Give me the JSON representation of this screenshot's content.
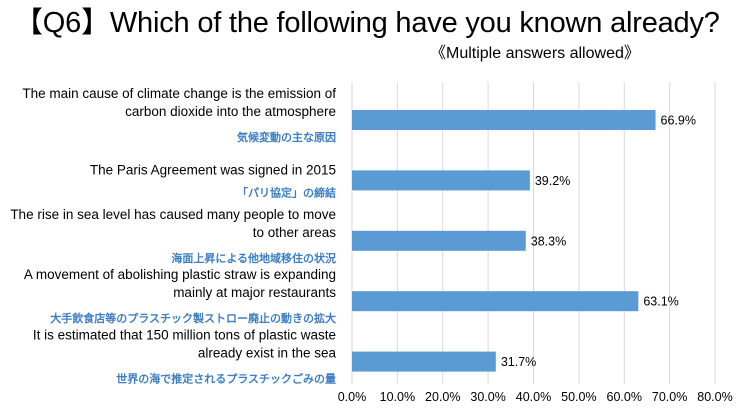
{
  "title": "【Q6】Which of the following have you known already?",
  "subtitle": "《Multiple answers allowed》",
  "bar_color": "#5b9bd5",
  "jp_label_color": "#3d7fc4",
  "grid_color": "#d9d9d9",
  "chart_data": {
    "type": "bar",
    "orientation": "horizontal",
    "categories": [
      {
        "en": [
          "The main cause of climate change is the emission of",
          "carbon dioxide into the atmosphere"
        ],
        "jp": "気候変動の主な原因"
      },
      {
        "en": [
          "The Paris Agreement was signed in 2015"
        ],
        "jp": "「パリ協定」の締結"
      },
      {
        "en": [
          "The rise in sea level has caused many people to move",
          "to other areas"
        ],
        "jp": "海面上昇による他地域移住の状況"
      },
      {
        "en": [
          "A movement of abolishing plastic straw is expanding",
          "mainly at major restaurants"
        ],
        "jp": "大手飲食店等のプラスチック製ストロー廃止の動きの拡大"
      },
      {
        "en": [
          "It is estimated that 150 million tons of plastic waste",
          "already exist in the sea"
        ],
        "jp": "世界の海で推定されるプラスチックごみの量"
      }
    ],
    "values": [
      66.9,
      39.2,
      38.3,
      63.1,
      31.7
    ],
    "value_labels": [
      "66.9%",
      "39.2%",
      "38.3%",
      "63.1%",
      "31.7%"
    ],
    "xlim": [
      0,
      80
    ],
    "xticks": [
      "0.0%",
      "10.0%",
      "20.0%",
      "30.0%",
      "40.0%",
      "50.0%",
      "60.0%",
      "70.0%",
      "80.0%"
    ],
    "grid": true,
    "legend": "none"
  }
}
